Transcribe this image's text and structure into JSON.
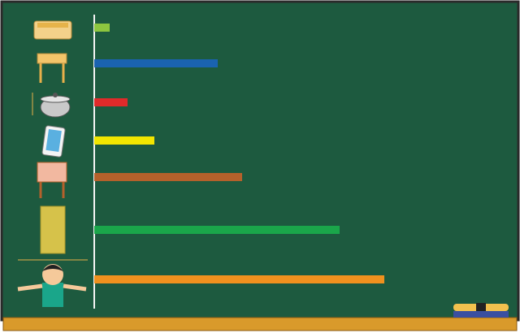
{
  "chart_data": {
    "type": "bar",
    "orientation": "horizontal",
    "values": [
      19,
      152,
      41,
      74,
      182,
      302,
      357
    ],
    "colors": [
      "#8dc63f",
      "#1a63b0",
      "#e02a2a",
      "#f2e600",
      "#b5612b",
      "#1aa64a",
      "#f0911e"
    ],
    "xlim": [
      0,
      520
    ]
  }
}
